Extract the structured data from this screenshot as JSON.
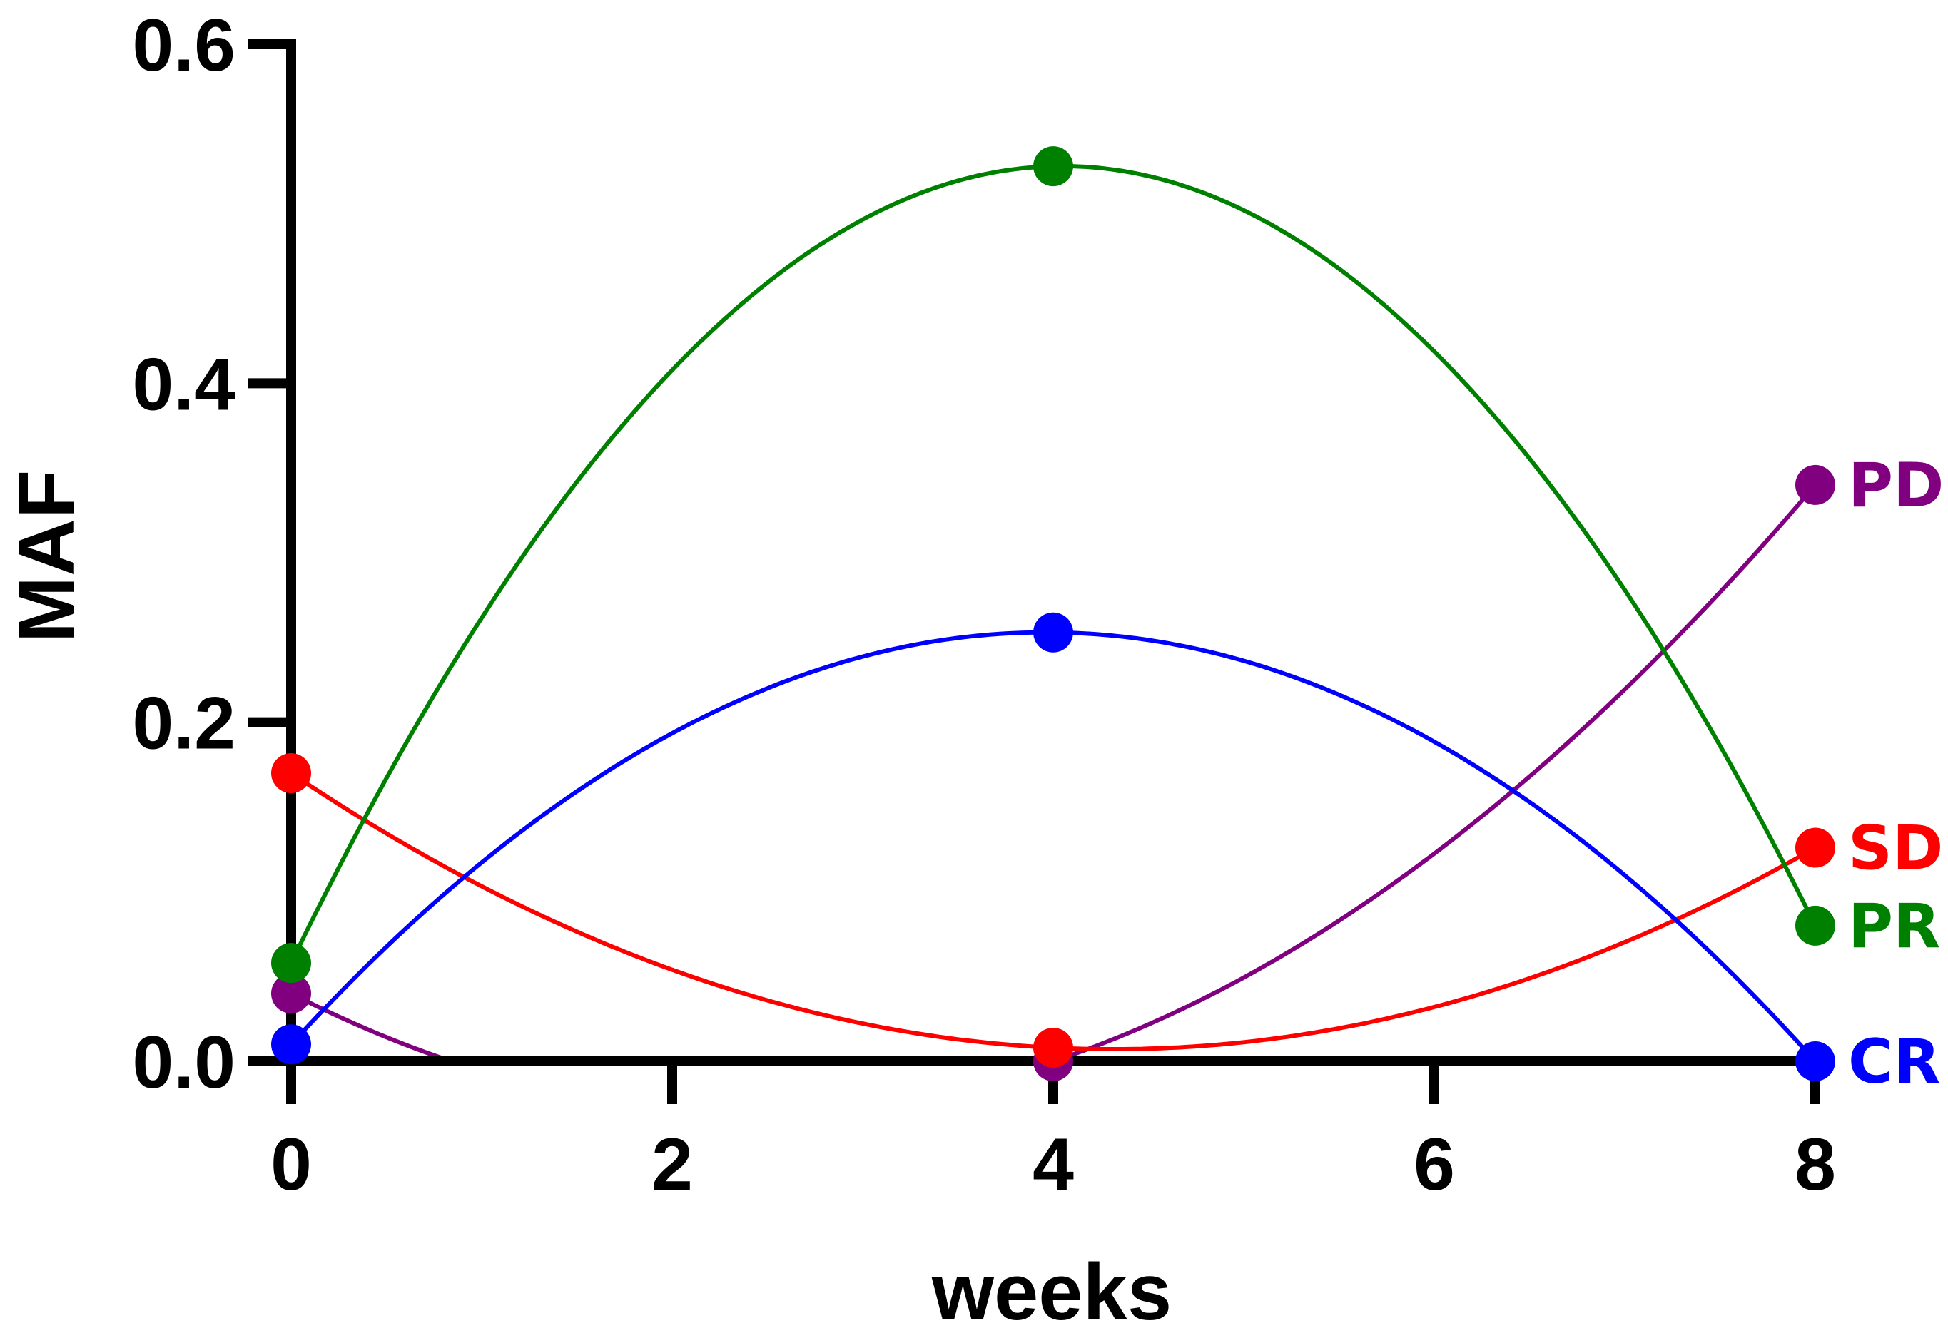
{
  "chart_data": {
    "type": "line",
    "title": "",
    "xlabel": "weeks",
    "ylabel": "MAF",
    "xlim": [
      0,
      8
    ],
    "ylim": [
      0,
      0.6
    ],
    "x_ticks": [
      "0",
      "2",
      "4",
      "6",
      "8"
    ],
    "y_ticks": [
      "0.0",
      "0.2",
      "0.4",
      "0.6"
    ],
    "grid": false,
    "legend": "labels at line ends (right)",
    "x": [
      0,
      4,
      8
    ],
    "series": [
      {
        "name": "PD",
        "color": "#800080",
        "values": [
          0.04,
          0.0,
          0.34
        ]
      },
      {
        "name": "SD",
        "color": "#ff0000",
        "values": [
          0.17,
          0.008,
          0.126
        ]
      },
      {
        "name": "PR",
        "color": "#008000",
        "values": [
          0.058,
          0.528,
          0.08
        ]
      },
      {
        "name": "CR",
        "color": "#0000ff",
        "values": [
          0.01,
          0.253,
          0.0
        ]
      }
    ]
  }
}
